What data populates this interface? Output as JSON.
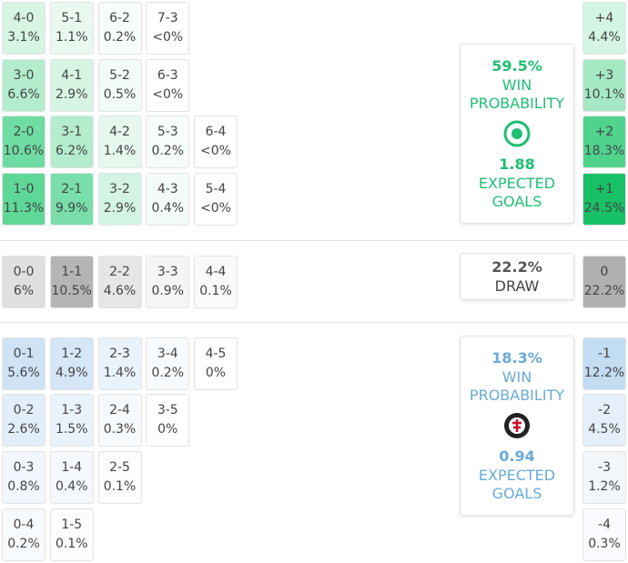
{
  "home": {
    "rows": [
      [
        {
          "score": "4-0",
          "pct": "3.1%",
          "color": "#d6f5e3"
        },
        {
          "score": "5-1",
          "pct": "1.1%",
          "color": "#e9f9f0"
        },
        {
          "score": "6-2",
          "pct": "0.2%",
          "color": "#f7fdf9"
        },
        {
          "score": "7-3",
          "pct": "<0%",
          "color": "#ffffff"
        }
      ],
      [
        {
          "score": "3-0",
          "pct": "6.6%",
          "color": "#b4ecce"
        },
        {
          "score": "4-1",
          "pct": "2.9%",
          "color": "#d6f5e3"
        },
        {
          "score": "5-2",
          "pct": "0.5%",
          "color": "#f2fbf6"
        },
        {
          "score": "6-3",
          "pct": "<0%",
          "color": "#ffffff"
        }
      ],
      [
        {
          "score": "2-0",
          "pct": "10.6%",
          "color": "#6fdca3"
        },
        {
          "score": "3-1",
          "pct": "6.2%",
          "color": "#b4ecce"
        },
        {
          "score": "4-2",
          "pct": "1.4%",
          "color": "#e6f8ee"
        },
        {
          "score": "5-3",
          "pct": "0.2%",
          "color": "#f7fdf9"
        },
        {
          "score": "6-4",
          "pct": "<0%",
          "color": "#ffffff"
        }
      ],
      [
        {
          "score": "1-0",
          "pct": "11.3%",
          "color": "#5fd897"
        },
        {
          "score": "2-1",
          "pct": "9.9%",
          "color": "#79dea9"
        },
        {
          "score": "3-2",
          "pct": "2.9%",
          "color": "#d3f4e2"
        },
        {
          "score": "4-3",
          "pct": "0.4%",
          "color": "#f4fcf7"
        },
        {
          "score": "5-4",
          "pct": "<0%",
          "color": "#ffffff"
        }
      ]
    ],
    "side": [
      {
        "score": "+4",
        "pct": "4.4%",
        "color": "#d4f5e3"
      },
      {
        "score": "+3",
        "pct": "10.1%",
        "color": "#a5e9c4"
      },
      {
        "score": "+2",
        "pct": "18.3%",
        "color": "#4fd38d"
      },
      {
        "score": "+1",
        "pct": "24.5%",
        "color": "#18c165"
      }
    ],
    "panel": {
      "win": "59.5%",
      "win_label": "WIN PROBABILITY",
      "xg": "1.88",
      "xg_label": "EXPECTED GOALS",
      "color": "#1fbf73"
    }
  },
  "draw": {
    "rows": [
      [
        {
          "score": "0-0",
          "pct": "6%",
          "color": "#e0e0e0"
        },
        {
          "score": "1-1",
          "pct": "10.5%",
          "color": "#b5b5b5"
        },
        {
          "score": "2-2",
          "pct": "4.6%",
          "color": "#e6e6e6"
        },
        {
          "score": "3-3",
          "pct": "0.9%",
          "color": "#f5f5f5"
        },
        {
          "score": "4-4",
          "pct": "0.1%",
          "color": "#fafafa"
        }
      ]
    ],
    "side": [
      {
        "score": "0",
        "pct": "22.2%",
        "color": "#b0b0b0"
      }
    ],
    "panel": {
      "pct": "22.2%",
      "label": "DRAW"
    }
  },
  "away": {
    "rows": [
      [
        {
          "score": "0-1",
          "pct": "5.6%",
          "color": "#cfe3f5"
        },
        {
          "score": "1-2",
          "pct": "4.9%",
          "color": "#d5e6f6"
        },
        {
          "score": "2-3",
          "pct": "1.4%",
          "color": "#eaf3fb"
        },
        {
          "score": "3-4",
          "pct": "0.2%",
          "color": "#f8fbfe"
        },
        {
          "score": "4-5",
          "pct": "0%",
          "color": "#ffffff"
        }
      ],
      [
        {
          "score": "0-2",
          "pct": "2.6%",
          "color": "#e2eef9"
        },
        {
          "score": "1-3",
          "pct": "1.5%",
          "color": "#eaf3fb"
        },
        {
          "score": "2-4",
          "pct": "0.3%",
          "color": "#f7fafd"
        },
        {
          "score": "3-5",
          "pct": "0%",
          "color": "#ffffff"
        }
      ],
      [
        {
          "score": "0-3",
          "pct": "0.8%",
          "color": "#f1f7fc"
        },
        {
          "score": "1-4",
          "pct": "0.4%",
          "color": "#f5f9fd"
        },
        {
          "score": "2-5",
          "pct": "0.1%",
          "color": "#fafcfe"
        }
      ],
      [
        {
          "score": "0-4",
          "pct": "0.2%",
          "color": "#f8fbfe"
        },
        {
          "score": "1-5",
          "pct": "0.1%",
          "color": "#fafcfe"
        }
      ]
    ],
    "side": [
      {
        "score": "-1",
        "pct": "12.2%",
        "color": "#c2dcf2"
      },
      {
        "score": "-2",
        "pct": "4.5%",
        "color": "#e4eff9"
      },
      {
        "score": "-3",
        "pct": "1.2%",
        "color": "#f2f7fc"
      },
      {
        "score": "-4",
        "pct": "0.3%",
        "color": "#f9fbfe"
      }
    ],
    "panel": {
      "win": "18.3%",
      "win_label": "WIN PROBABILITY",
      "xg": "0.94",
      "xg_label": "EXPECTED GOALS",
      "color": "#6aaad8"
    }
  }
}
